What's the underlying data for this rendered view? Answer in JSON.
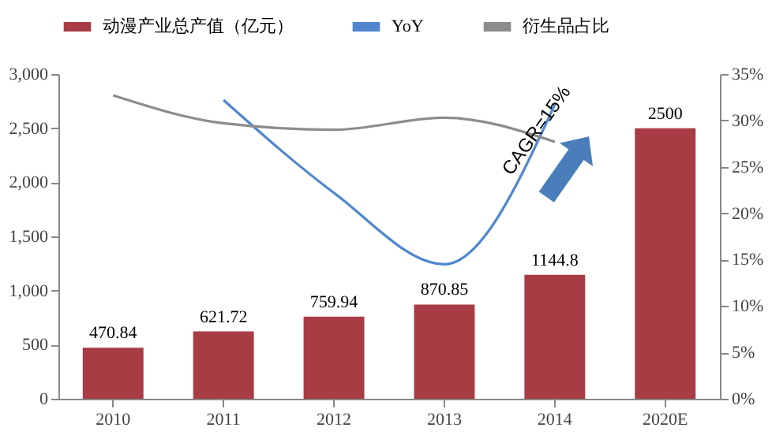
{
  "chart_data": {
    "type": "bar",
    "categories": [
      "2010",
      "2011",
      "2012",
      "2013",
      "2014",
      "2020E"
    ],
    "series": [
      {
        "name": "动漫产业总产值（亿元）",
        "color": "#a83c45",
        "values": [
          470.84,
          621.72,
          759.94,
          870.85,
          1144.8,
          2500
        ],
        "value_labels": [
          "470.84",
          "621.72",
          "759.94",
          "870.85",
          "1144.8",
          "2500"
        ]
      },
      {
        "name": "YoY",
        "type": "line",
        "axis": "y2",
        "color": "#4f86cf",
        "values": [
          null,
          32.2,
          22.2,
          14.5,
          31.7,
          null
        ]
      },
      {
        "name": "衍生品占比",
        "type": "line",
        "axis": "y2",
        "color": "#8c8c8c",
        "values": [
          32.7,
          29.7,
          29.0,
          30.3,
          27.7,
          null
        ]
      }
    ],
    "ylim": [
      0,
      3000
    ],
    "yticks": [
      {
        "value": 0,
        "label": "0"
      },
      {
        "value": 500,
        "label": "500"
      },
      {
        "value": 1000,
        "label": "1,000"
      },
      {
        "value": 1500,
        "label": "1,500"
      },
      {
        "value": 2000,
        "label": "2,000"
      },
      {
        "value": 2500,
        "label": "2,500"
      },
      {
        "value": 3000,
        "label": "3,000"
      }
    ],
    "y2lim": [
      0,
      35
    ],
    "y2ticks": [
      {
        "value": 0,
        "label": "0%"
      },
      {
        "value": 5,
        "label": "5%"
      },
      {
        "value": 10,
        "label": "10%"
      },
      {
        "value": 15,
        "label": "15%"
      },
      {
        "value": 20,
        "label": "20%"
      },
      {
        "value": 25,
        "label": "25%"
      },
      {
        "value": 30,
        "label": "30%"
      },
      {
        "value": 35,
        "label": "35%"
      }
    ],
    "annotations": [
      "CAGR=15%"
    ],
    "legend": "top",
    "grid": false,
    "marker": "none",
    "line_style": "solid"
  }
}
